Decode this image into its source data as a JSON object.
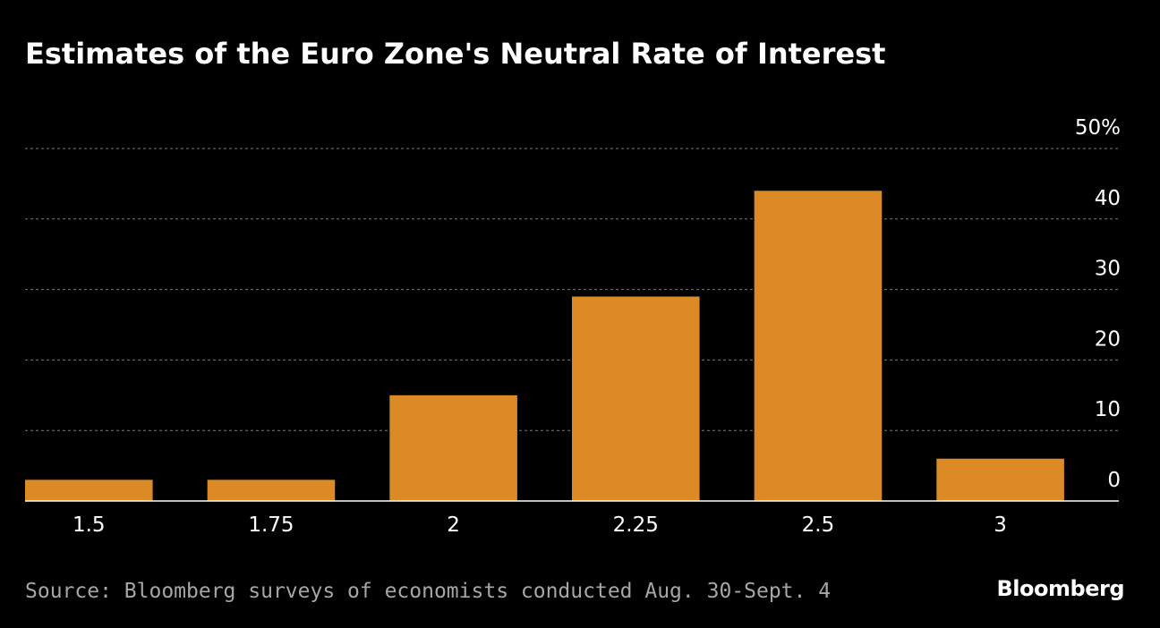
{
  "title": "Estimates of the Euro Zone's Neutral Rate of Interest",
  "source": "Source: Bloomberg surveys of economists conducted Aug. 30-Sept. 4",
  "brand": "Bloomberg",
  "colors": {
    "background": "#000000",
    "bar": "#dc8a26",
    "grid": "#7a7a7a",
    "text": "#ffffff",
    "source_text": "#a6a6a6"
  },
  "chart_data": {
    "type": "bar",
    "title": "Estimates of the Euro Zone's Neutral Rate of Interest",
    "categories": [
      "1.5",
      "1.75",
      "2",
      "2.25",
      "2.5",
      "3"
    ],
    "values": [
      3,
      3,
      15,
      29,
      44,
      6
    ],
    "xlabel": "",
    "ylabel": "",
    "y_unit_label": "50%",
    "ylim": [
      0,
      50
    ],
    "yticks": [
      0,
      10,
      20,
      30,
      40,
      50
    ],
    "ytick_labels": [
      "0",
      "10",
      "20",
      "30",
      "40",
      "50%"
    ],
    "y_axis_side": "right",
    "grid": true
  }
}
